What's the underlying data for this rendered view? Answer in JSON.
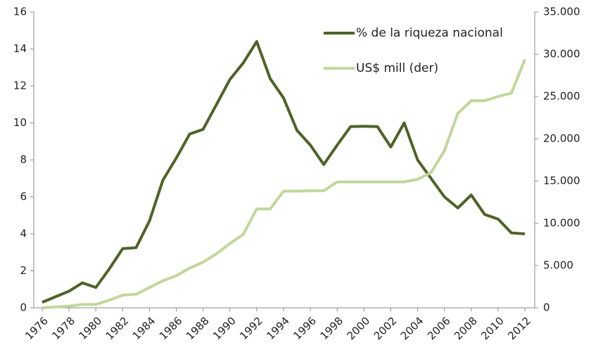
{
  "chart_data": {
    "type": "line",
    "x": [
      1976,
      1977,
      1978,
      1979,
      1980,
      1981,
      1982,
      1983,
      1984,
      1985,
      1986,
      1987,
      1988,
      1989,
      1990,
      1991,
      1992,
      1993,
      1994,
      1995,
      1996,
      1997,
      1998,
      1999,
      2000,
      2001,
      2002,
      2003,
      2004,
      2005,
      2006,
      2007,
      2008,
      2009,
      2010,
      2011,
      2012
    ],
    "xlim": [
      1976,
      2012
    ],
    "xticks": [
      1976,
      1978,
      1980,
      1982,
      1984,
      1986,
      1988,
      1990,
      1992,
      1994,
      1996,
      1998,
      2000,
      2002,
      2004,
      2006,
      2008,
      2010,
      2012
    ],
    "ylim": [
      0,
      16
    ],
    "yticks": [
      0,
      2,
      4,
      6,
      8,
      10,
      12,
      14,
      16
    ],
    "y2lim": [
      0,
      35000
    ],
    "y2ticks": [
      0,
      {
        "value": 5000,
        "label": "5.000"
      },
      {
        "value": 10000,
        "label": "10.000"
      },
      {
        "value": 15000,
        "label": "15.000"
      },
      {
        "value": 20000,
        "label": "20.000"
      },
      {
        "value": 25000,
        "label": "25.000"
      },
      {
        "value": 30000,
        "label": "30.000"
      },
      {
        "value": 35000,
        "label": "35.000"
      }
    ],
    "legend": "upper right",
    "grid": false,
    "series": [
      {
        "name": "% de la riqueza nacional",
        "color": "#4f6228",
        "values": [
          0.3,
          0.6,
          0.9,
          1.35,
          1.1,
          2.1,
          3.2,
          3.25,
          4.7,
          6.9,
          8.1,
          9.4,
          9.65,
          11.0,
          12.35,
          13.25,
          14.4,
          12.4,
          11.35,
          9.6,
          8.8,
          7.75,
          8.8,
          9.8,
          9.82,
          9.8,
          8.7,
          10.0,
          8.0,
          7.0,
          6.0,
          5.4,
          6.1,
          5.05,
          4.8,
          4.05,
          4.0
        ]
      },
      {
        "name": "US$ mill (der)",
        "color": "#c3d69b",
        "axis": "y2",
        "values": [
          0,
          100,
          200,
          400,
          400,
          900,
          1500,
          1600,
          2400,
          3200,
          3800,
          4700,
          5400,
          6400,
          7600,
          8700,
          11700,
          11700,
          13800,
          13800,
          13850,
          13850,
          14900,
          14900,
          14900,
          14900,
          14900,
          14900,
          15200,
          16000,
          18600,
          23000,
          24500,
          24500,
          25000,
          25400,
          29400
        ]
      }
    ]
  }
}
